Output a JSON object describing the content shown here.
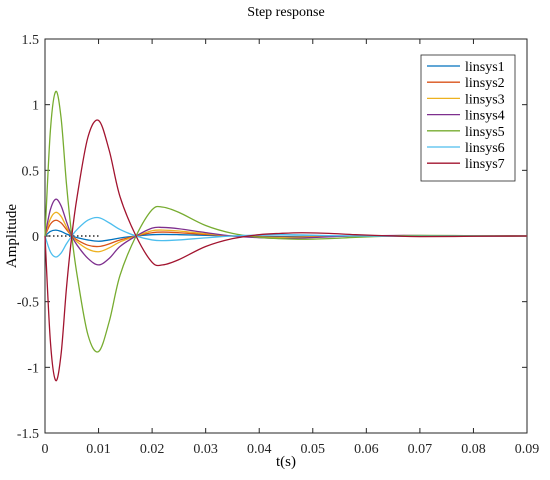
{
  "chart_data": {
    "type": "line",
    "title": "Step response",
    "xlabel": "t(s)",
    "ylabel": "Amplitude",
    "xlim": [
      0,
      0.09
    ],
    "ylim": [
      -1.5,
      1.5
    ],
    "xticks": [
      "0",
      "0.01",
      "0.02",
      "0.03",
      "0.04",
      "0.05",
      "0.06",
      "0.07",
      "0.08",
      "0.09"
    ],
    "yticks": [
      "1.5",
      "1",
      "0.5",
      "0",
      "-0.5",
      "-1",
      "-1.5"
    ],
    "grid": false,
    "legend_position": "top-right",
    "reference_line": {
      "y": 0,
      "style": "dotted",
      "x_range": [
        0,
        0.01
      ]
    },
    "x": [
      0,
      0.001,
      0.002,
      0.003,
      0.004,
      0.005,
      0.006,
      0.008,
      0.01,
      0.012,
      0.014,
      0.017,
      0.02,
      0.022,
      0.025,
      0.03,
      0.035,
      0.04,
      0.044,
      0.048,
      0.053,
      0.058,
      0.065,
      0.07,
      0.08,
      0.09
    ],
    "series": [
      {
        "name": "linsys1",
        "color": "#0072BD",
        "values": [
          0,
          0.035,
          0.045,
          0.035,
          0.015,
          0,
          -0.012,
          -0.03,
          -0.04,
          -0.03,
          -0.015,
          0,
          0.01,
          0.012,
          0.01,
          0.005,
          0,
          -0.003,
          -0.004,
          -0.003,
          -0.001,
          0,
          0.001,
          0.001,
          0,
          0
        ]
      },
      {
        "name": "linsys2",
        "color": "#D95319",
        "values": [
          0,
          0.09,
          0.12,
          0.1,
          0.05,
          0,
          -0.03,
          -0.07,
          -0.08,
          -0.06,
          -0.03,
          0,
          0.025,
          0.03,
          0.025,
          0.012,
          0,
          -0.006,
          -0.009,
          -0.007,
          -0.003,
          0,
          0.002,
          0.002,
          0,
          0
        ]
      },
      {
        "name": "linsys3",
        "color": "#EDB120",
        "values": [
          0,
          0.13,
          0.18,
          0.15,
          0.07,
          0,
          -0.045,
          -0.1,
          -0.12,
          -0.09,
          -0.045,
          0,
          0.04,
          0.045,
          0.038,
          0.018,
          0,
          -0.009,
          -0.013,
          -0.01,
          -0.004,
          0,
          0.003,
          0.003,
          0,
          0
        ]
      },
      {
        "name": "linsys4",
        "color": "#7E2F8E",
        "values": [
          0,
          0.2,
          0.28,
          0.23,
          0.11,
          0,
          -0.07,
          -0.17,
          -0.22,
          -0.17,
          -0.08,
          0,
          0.06,
          0.065,
          0.055,
          0.026,
          0,
          -0.013,
          -0.019,
          -0.015,
          -0.006,
          0,
          0.004,
          0.004,
          0,
          0
        ]
      },
      {
        "name": "linsys5",
        "color": "#77AC30",
        "values": [
          0,
          0.8,
          1.1,
          0.9,
          0.4,
          0,
          -0.3,
          -0.75,
          -0.88,
          -0.65,
          -0.3,
          0,
          0.2,
          0.22,
          0.18,
          0.08,
          0.02,
          -0.01,
          -0.02,
          -0.025,
          -0.02,
          -0.01,
          0,
          0.005,
          0.002,
          0
        ]
      },
      {
        "name": "linsys6",
        "color": "#4DBEEE",
        "values": [
          0,
          -0.12,
          -0.16,
          -0.13,
          -0.06,
          0,
          0.05,
          0.12,
          0.14,
          0.1,
          0.05,
          0,
          -0.03,
          -0.035,
          -0.03,
          -0.014,
          0,
          0.007,
          0.01,
          0.008,
          0.003,
          0,
          -0.002,
          -0.002,
          0,
          0
        ]
      },
      {
        "name": "linsys7",
        "color": "#A2142F",
        "values": [
          0,
          -0.8,
          -1.1,
          -0.9,
          -0.4,
          0,
          0.3,
          0.75,
          0.88,
          0.65,
          0.3,
          0,
          -0.2,
          -0.22,
          -0.18,
          -0.08,
          -0.02,
          0.01,
          0.02,
          0.025,
          0.02,
          0.01,
          0,
          -0.005,
          -0.002,
          0
        ]
      }
    ]
  }
}
